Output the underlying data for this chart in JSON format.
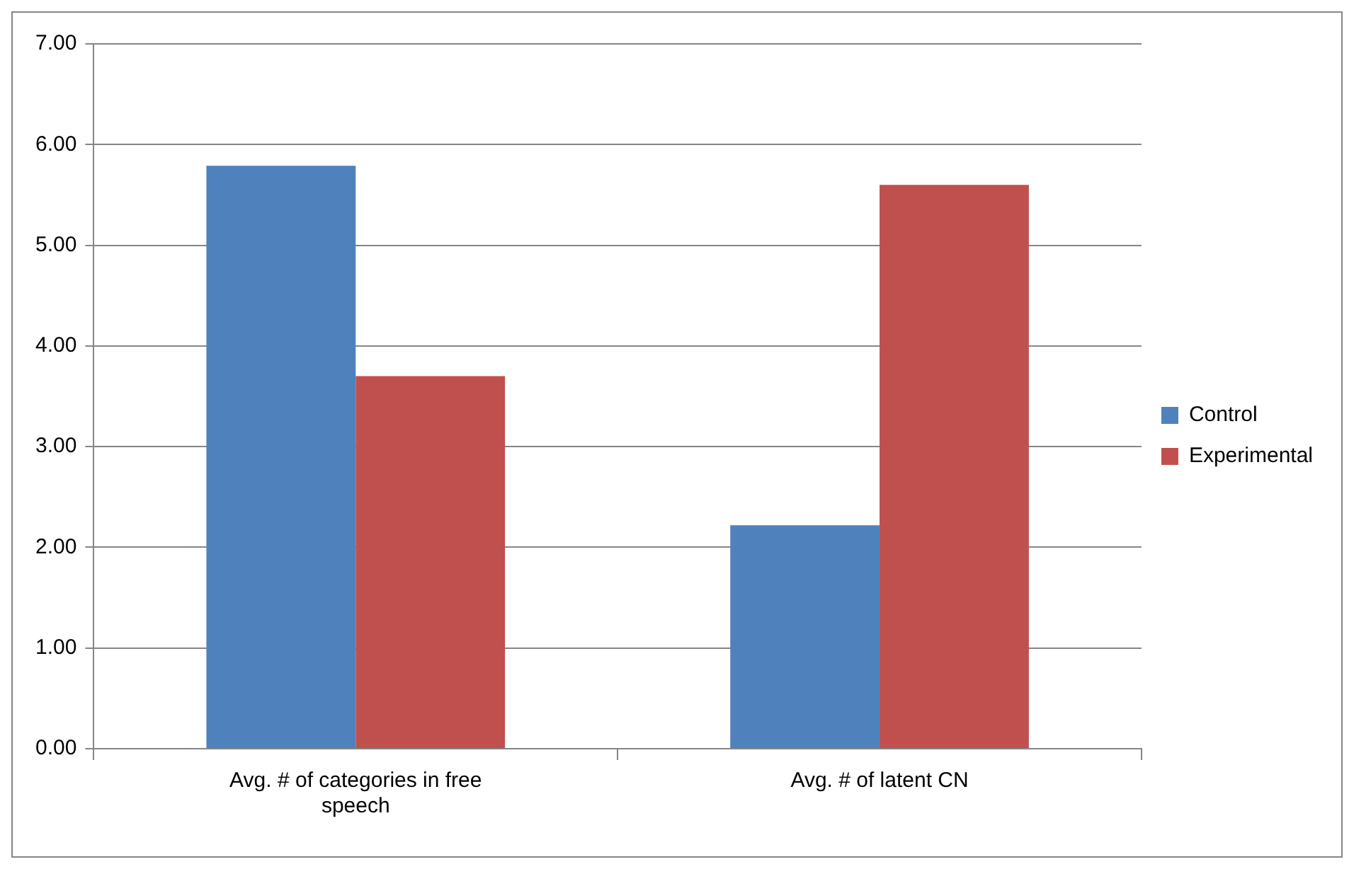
{
  "chart_data": {
    "type": "bar",
    "categories": [
      "Avg. # of categories in free speech",
      "Avg. # of latent CN"
    ],
    "series": [
      {
        "name": "Control",
        "color": "#4f81bd",
        "values": [
          5.79,
          2.22
        ]
      },
      {
        "name": "Experimental",
        "color": "#c0504d",
        "values": [
          3.7,
          5.6
        ]
      }
    ],
    "ylim": [
      0,
      7
    ],
    "yticks": [
      {
        "value": 0,
        "label": "0.00"
      },
      {
        "value": 1,
        "label": "1.00"
      },
      {
        "value": 2,
        "label": "2.00"
      },
      {
        "value": 3,
        "label": "3.00"
      },
      {
        "value": 4,
        "label": "4.00"
      },
      {
        "value": 5,
        "label": "5.00"
      },
      {
        "value": 6,
        "label": "6.00"
      },
      {
        "value": 7,
        "label": "7.00"
      }
    ],
    "grid": "y",
    "legend": "right"
  }
}
